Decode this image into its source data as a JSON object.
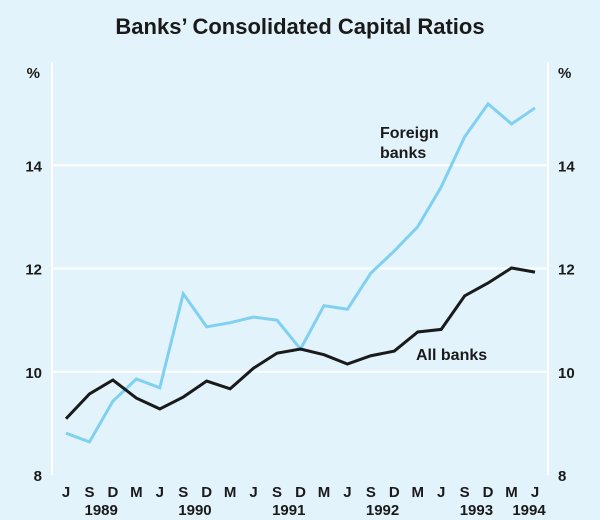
{
  "chart_data": {
    "type": "line",
    "title": "Banks’ Consolidated Capital Ratios",
    "ylabel_left": "%",
    "ylabel_right": "%",
    "ylim": [
      8,
      16
    ],
    "yticks": [
      8,
      10,
      12,
      14
    ],
    "grid": true,
    "x": [
      "J",
      "S",
      "D",
      "M",
      "J",
      "S",
      "D",
      "M",
      "J",
      "S",
      "D",
      "M",
      "J",
      "S",
      "D",
      "M",
      "J",
      "S",
      "D",
      "M",
      "J"
    ],
    "years": [
      {
        "label": "1989",
        "index": 1
      },
      {
        "label": "1990",
        "index": 5
      },
      {
        "label": "1991",
        "index": 9
      },
      {
        "label": "1992",
        "index": 13
      },
      {
        "label": "1993",
        "index": 17
      },
      {
        "label": "1994",
        "index": 20
      }
    ],
    "series": [
      {
        "name": "Foreign banks",
        "label_lines": [
          "Foreign",
          "banks"
        ],
        "color": "#80d0f2",
        "values": [
          8.81,
          8.64,
          9.43,
          9.86,
          9.69,
          11.51,
          10.87,
          10.95,
          11.06,
          11.0,
          10.44,
          11.28,
          11.21,
          11.91,
          12.34,
          12.81,
          13.58,
          14.55,
          15.19,
          14.8,
          15.11
        ]
      },
      {
        "name": "All banks",
        "label_lines": [
          "All banks"
        ],
        "color": "#1a1a1a",
        "values": [
          9.09,
          9.57,
          9.84,
          9.49,
          9.28,
          9.51,
          9.82,
          9.67,
          10.07,
          10.36,
          10.44,
          10.33,
          10.15,
          10.31,
          10.4,
          10.77,
          10.82,
          11.47,
          11.72,
          12.01,
          11.93
        ]
      }
    ]
  }
}
